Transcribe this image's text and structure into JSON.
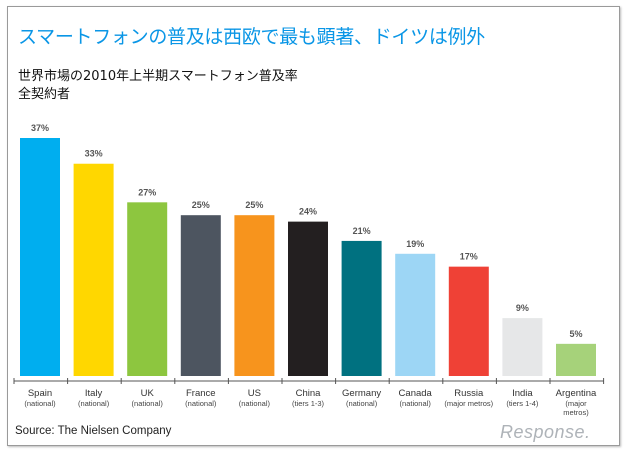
{
  "title": "スマートフォンの普及は西欧で最も顕著、ドイツは例外",
  "subtitle_line1": "世界市場の2010年上半期スマートフォン普及率",
  "subtitle_line2": "全契約者",
  "source": "Source: The Nielsen Company",
  "logo": "Response.",
  "chart_data": {
    "type": "bar",
    "title": "世界市場の2010年上半期スマートフォン普及率",
    "xlabel": "",
    "ylabel": "",
    "ylim": [
      0,
      37
    ],
    "categories": [
      "Spain",
      "Italy",
      "UK",
      "France",
      "US",
      "China",
      "Germany",
      "Canada",
      "Russia",
      "India",
      "Argentina"
    ],
    "sublabels": [
      "(national)",
      "(national)",
      "(national)",
      "(national)",
      "(national)",
      "(tiers 1-3)",
      "(national)",
      "(national)",
      "(major metros)",
      "(tiers 1-4)",
      "(major metros)"
    ],
    "values": [
      37,
      33,
      27,
      25,
      25,
      24,
      21,
      19,
      17,
      9,
      5
    ],
    "value_labels": [
      "37%",
      "33%",
      "27%",
      "25%",
      "25%",
      "24%",
      "21%",
      "19%",
      "17%",
      "9%",
      "5%"
    ],
    "colors": [
      "#00aeef",
      "#ffd700",
      "#8dc63f",
      "#4d5560",
      "#f7941d",
      "#231f20",
      "#007180",
      "#9dd6f5",
      "#ef4136",
      "#e6e7e8",
      "#a6d27a"
    ]
  }
}
